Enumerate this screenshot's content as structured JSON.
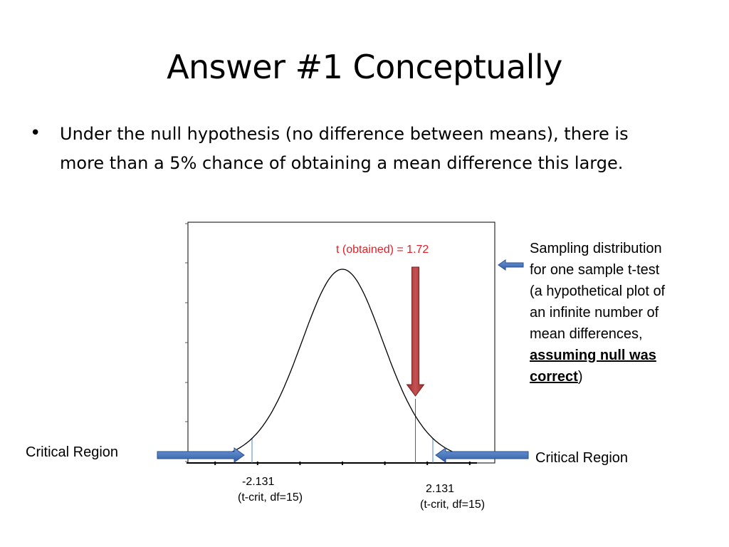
{
  "slide": {
    "title": "Answer #1 Conceptually",
    "bullet": "•",
    "bullet_text": "Under the null hypothesis (no difference between means), there is more than a 5% chance of obtaining a mean difference this large."
  },
  "annotations": {
    "right_box_lines": [
      "Sampling distribution",
      "for one sample t-test",
      "(a hypothetical  plot of",
      "an infinite number of",
      "mean differences,"
    ],
    "right_box_bold_1": "assuming null was",
    "right_box_bold_2": "correct",
    "right_box_tail": ")",
    "critical_left": "Critical Region",
    "critical_right": "Critical Region",
    "t_obtained": "t (obtained) = 1.72",
    "tcrit_left_value": "-2.131",
    "tcrit_left_note": "(t-crit, df=15)",
    "tcrit_right_value": "2.131",
    "tcrit_right_note": "(t-crit, df=15)"
  },
  "colors": {
    "curve": "#000000",
    "obtained_arrow": "#b03a3a",
    "obtained_line": "#c0392b",
    "crit_line": "#4a86c8",
    "side_arrow": "#3d6eb8",
    "label_red": "#e41e26"
  },
  "chart_data": {
    "type": "line",
    "distribution": "t",
    "df": 15,
    "x_range": [
      -3,
      3
    ],
    "t_obtained": 1.72,
    "t_crit": [
      -2.131,
      2.131
    ],
    "grid": false,
    "legend": "none"
  }
}
